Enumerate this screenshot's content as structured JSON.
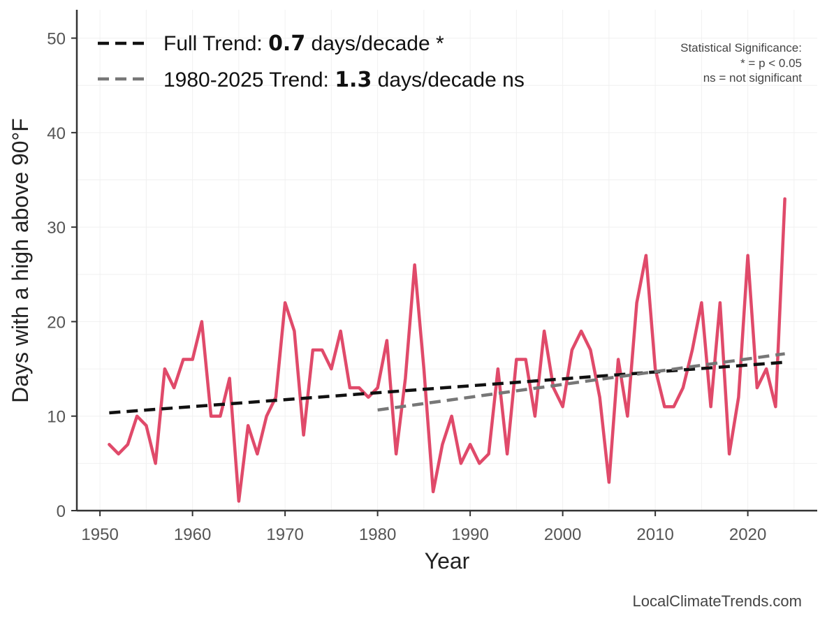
{
  "chart_data": {
    "type": "line",
    "xlabel": "Year",
    "ylabel": "Days with a high above 90°F",
    "xlim": [
      1947.5,
      2027.5
    ],
    "ylim": [
      0,
      53
    ],
    "xticks": [
      1950,
      1960,
      1970,
      1980,
      1990,
      2000,
      2010,
      2020
    ],
    "yticks": [
      0,
      10,
      20,
      30,
      40,
      50
    ],
    "grid": true,
    "legend_position": "top-left",
    "series": [
      {
        "name": "Days with a high above 90°F",
        "color": "#e04a6a",
        "style": "solid",
        "x": [
          1951,
          1952,
          1953,
          1954,
          1955,
          1956,
          1957,
          1958,
          1959,
          1960,
          1961,
          1962,
          1963,
          1964,
          1965,
          1966,
          1967,
          1968,
          1969,
          1970,
          1971,
          1972,
          1973,
          1974,
          1975,
          1976,
          1977,
          1978,
          1979,
          1980,
          1981,
          1982,
          1983,
          1984,
          1985,
          1986,
          1987,
          1988,
          1989,
          1990,
          1991,
          1992,
          1993,
          1994,
          1995,
          1996,
          1997,
          1998,
          1999,
          2000,
          2001,
          2002,
          2003,
          2004,
          2005,
          2006,
          2007,
          2008,
          2009,
          2010,
          2011,
          2012,
          2013,
          2014,
          2015,
          2016,
          2017,
          2018,
          2019,
          2020,
          2021,
          2022,
          2023,
          2024
        ],
        "values": [
          7,
          6,
          7,
          10,
          9,
          5,
          15,
          13,
          16,
          16,
          20,
          10,
          10,
          14,
          1,
          9,
          6,
          10,
          12,
          22,
          19,
          8,
          17,
          17,
          15,
          19,
          13,
          13,
          12,
          13,
          18,
          6,
          14,
          26,
          15,
          2,
          7,
          10,
          5,
          7,
          5,
          6,
          15,
          6,
          16,
          16,
          10,
          19,
          13,
          11,
          17,
          19,
          17,
          12,
          3,
          16,
          10,
          22,
          27,
          15,
          11,
          11,
          13,
          17,
          22,
          11,
          22,
          6,
          12,
          27,
          13,
          15,
          11,
          33
        ]
      },
      {
        "name": "Full Trend",
        "color": "#111111",
        "style": "dashed",
        "x": [
          1951,
          2024
        ],
        "values": [
          10.35,
          15.7
        ]
      },
      {
        "name": "1980-2025 Trend",
        "color": "#777777",
        "style": "dashed",
        "x": [
          1980,
          2024
        ],
        "values": [
          10.65,
          16.6
        ]
      }
    ],
    "legend": [
      {
        "prefix": "Full Trend: ",
        "value": "0.7",
        "suffix": " days/decade *",
        "color": "#111111"
      },
      {
        "prefix": "1980-2025 Trend: ",
        "value": "1.3",
        "suffix": " days/decade ns",
        "color": "#777777"
      }
    ],
    "annotations": {
      "significance": [
        "Statistical Significance:",
        "* = p < 0.05",
        "ns = not significant"
      ],
      "credit": "LocalClimateTrends.com"
    }
  }
}
